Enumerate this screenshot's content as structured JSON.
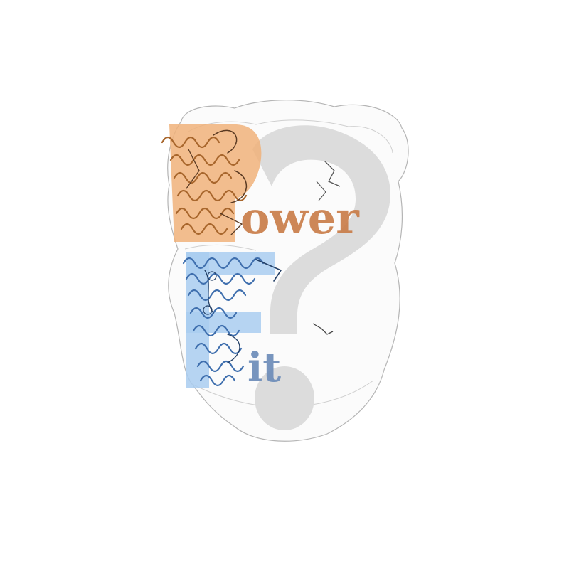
{
  "logo": {
    "letter_p": "P",
    "word_p_rest": "ower",
    "letter_f": "F",
    "word_f_rest": "it",
    "colors": {
      "background": "#ffffff",
      "envelope_outline": "#9a9a9a",
      "question_mark": "#dcdcdc",
      "orange_block": "#f0b27a",
      "orange_text": "#c97b46",
      "orange_ribbon": "#a8662c",
      "blue_block": "#a9cdf0",
      "blue_text": "#6a8bb8",
      "blue_ribbon": "#3f6fae"
    },
    "icons": [
      "density-envelope-icon",
      "question-mark-icon",
      "orange-protein-icon",
      "blue-protein-icon"
    ]
  }
}
